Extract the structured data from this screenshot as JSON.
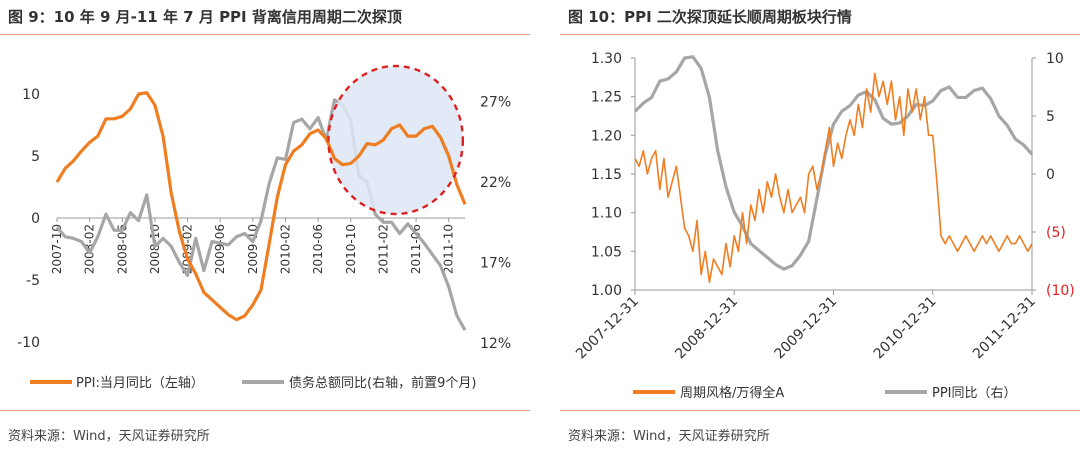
{
  "left": {
    "title": "图 9：10 年 9 月-11 年 7 月 PPI 背离信用周期二次探顶",
    "source": "资料来源：Wind，天风证券研究所",
    "chart_data": {
      "type": "line",
      "left_axis": {
        "ticks": [
          "10",
          "5",
          "0",
          "-5",
          "-10"
        ],
        "range": [
          -10,
          10
        ]
      },
      "right_axis": {
        "ticks": [
          "27%",
          "22%",
          "17%",
          "12%"
        ],
        "range": [
          12,
          27
        ]
      },
      "x_ticks": [
        "2007-10",
        "2008-02",
        "2008-06",
        "2008-10",
        "2009-02",
        "2009-06",
        "2009-10",
        "2010-02",
        "2010-06",
        "2010-10",
        "2011-02",
        "2011-06",
        "2011-10"
      ],
      "series": [
        {
          "name": "PPI:当月同比（左轴）",
          "color": "#ef7d22",
          "axis": "left",
          "t": [
            0,
            1,
            2,
            3,
            4,
            5,
            6,
            7,
            8,
            9,
            10,
            11,
            12,
            13,
            14,
            15,
            16,
            17,
            18,
            19,
            20,
            21,
            22,
            23,
            24,
            25,
            26,
            27,
            28,
            29,
            30,
            31,
            32,
            33,
            34,
            35,
            36,
            37,
            38,
            39,
            40,
            41,
            42,
            43,
            44,
            45,
            46,
            47,
            48,
            49,
            50
          ],
          "values": [
            2.9,
            4.0,
            4.6,
            5.4,
            6.1,
            6.6,
            8.0,
            8.0,
            8.2,
            8.8,
            10.0,
            10.1,
            9.1,
            6.6,
            2.0,
            -1.1,
            -3.3,
            -4.5,
            -6.0,
            -6.6,
            -7.2,
            -7.8,
            -8.2,
            -7.9,
            -7.0,
            -5.8,
            -2.1,
            1.7,
            4.3,
            5.4,
            5.9,
            6.8,
            7.1,
            6.4,
            4.8,
            4.3,
            4.4,
            5.0,
            6.0,
            5.9,
            6.3,
            7.2,
            7.5,
            6.6,
            6.6,
            7.2,
            7.4,
            6.5,
            5.0,
            2.7,
            1.1
          ]
        },
        {
          "name": "债务总额同比(右轴，前置9个月)",
          "color": "#a6a6a6",
          "axis": "right",
          "t": [
            0,
            1,
            2,
            3,
            4,
            5,
            6,
            7,
            8,
            9,
            10,
            11,
            12,
            13,
            14,
            15,
            16,
            17,
            18,
            19,
            20,
            21,
            22,
            23,
            24,
            25,
            26,
            27,
            28,
            29,
            30,
            31,
            32,
            33,
            34,
            35,
            36,
            37,
            38,
            39,
            40,
            41,
            42,
            43,
            44,
            45,
            46,
            47,
            48,
            49,
            50
          ],
          "values": [
            19.2,
            18.6,
            18.5,
            18.3,
            17.6,
            18.6,
            20.0,
            19.0,
            19.0,
            20.1,
            19.6,
            21.2,
            18.0,
            18.5,
            18.0,
            17.0,
            16.2,
            18.5,
            16.5,
            18.3,
            18.2,
            18.1,
            18.6,
            18.8,
            18.3,
            19.6,
            21.9,
            23.5,
            23.4,
            25.7,
            25.9,
            25.3,
            26.0,
            24.6,
            27.1,
            26.8,
            25.8,
            22.4,
            22.0,
            20.0,
            19.5,
            19.5,
            18.8,
            19.4,
            18.8,
            18.2,
            17.5,
            16.8,
            15.5,
            13.7,
            12.8
          ]
        }
      ],
      "highlight": {
        "t_start": 34,
        "t_end": 49
      }
    }
  },
  "right": {
    "title": "图 10：PPI 二次探顶延长顺周期板块行情",
    "source": "资料来源：Wind，天风证券研究所",
    "chart_data": {
      "type": "line",
      "left_axis": {
        "ticks": [
          "1.30",
          "1.25",
          "1.20",
          "1.15",
          "1.10",
          "1.05",
          "1.00"
        ],
        "range": [
          1.0,
          1.3
        ]
      },
      "right_axis": {
        "ticks": [
          "10",
          "5",
          "0",
          "(5)",
          "(10)"
        ],
        "range": [
          -10,
          10
        ]
      },
      "x_ticks": [
        "2007-12-31",
        "2008-12-31",
        "2009-12-31",
        "2010-12-31",
        "2011-12-31"
      ],
      "series": [
        {
          "name": "周期风格/万得全A",
          "color": "#ef7d22",
          "axis": "left",
          "t": [
            0,
            0.5,
            1,
            1.5,
            2,
            2.5,
            3,
            3.5,
            4,
            4.5,
            5,
            5.5,
            6,
            6.5,
            7,
            7.5,
            8,
            8.5,
            9,
            9.5,
            10,
            10.5,
            11,
            11.5,
            12,
            12.5,
            13,
            13.5,
            14,
            14.5,
            15,
            15.5,
            16,
            16.5,
            17,
            17.5,
            18,
            18.5,
            19,
            19.5,
            20,
            20.5,
            21,
            21.5,
            22,
            22.5,
            23,
            23.5,
            24,
            24.5,
            25,
            25.5,
            26,
            26.5,
            27,
            27.5,
            28,
            28.5,
            29,
            29.5,
            30,
            30.5,
            31,
            31.5,
            32,
            32.5,
            33,
            33.5,
            34,
            34.5,
            35,
            35.5,
            36,
            36.5,
            37,
            37.5,
            38,
            38.5,
            39,
            39.5,
            40,
            40.5,
            41,
            41.5,
            42,
            42.5,
            43,
            43.5,
            44,
            44.5,
            45,
            45.5,
            46,
            46.5,
            47,
            47.5,
            48
          ],
          "values": [
            1.17,
            1.16,
            1.18,
            1.15,
            1.17,
            1.18,
            1.13,
            1.17,
            1.12,
            1.14,
            1.16,
            1.12,
            1.08,
            1.07,
            1.05,
            1.09,
            1.02,
            1.05,
            1.01,
            1.04,
            1.03,
            1.02,
            1.06,
            1.03,
            1.07,
            1.05,
            1.1,
            1.06,
            1.11,
            1.09,
            1.13,
            1.1,
            1.14,
            1.12,
            1.15,
            1.12,
            1.1,
            1.13,
            1.1,
            1.11,
            1.12,
            1.1,
            1.15,
            1.16,
            1.13,
            1.15,
            1.18,
            1.21,
            1.16,
            1.19,
            1.17,
            1.2,
            1.22,
            1.2,
            1.24,
            1.21,
            1.26,
            1.23,
            1.28,
            1.25,
            1.27,
            1.24,
            1.27,
            1.22,
            1.25,
            1.2,
            1.26,
            1.23,
            1.26,
            1.22,
            1.25,
            1.2,
            1.2,
            1.14,
            1.07,
            1.06,
            1.07,
            1.06,
            1.05,
            1.06,
            1.07,
            1.06,
            1.05,
            1.06,
            1.07,
            1.06,
            1.07,
            1.06,
            1.05,
            1.06,
            1.07,
            1.06,
            1.06,
            1.07,
            1.06,
            1.05,
            1.06,
            1.07
          ]
        },
        {
          "name": "PPI同比（右）",
          "color": "#a6a6a6",
          "axis": "right",
          "t": [
            0,
            1,
            2,
            3,
            4,
            5,
            6,
            7,
            8,
            9,
            10,
            11,
            12,
            13,
            14,
            15,
            16,
            17,
            18,
            19,
            20,
            21,
            22,
            23,
            24,
            25,
            26,
            27,
            28,
            29,
            30,
            31,
            32,
            33,
            34,
            35,
            36,
            37,
            38,
            39,
            40,
            41,
            42,
            43,
            44,
            45,
            46,
            47,
            48
          ],
          "values": [
            5.4,
            6.1,
            6.6,
            8.0,
            8.2,
            8.8,
            10.0,
            10.1,
            9.1,
            6.6,
            2.0,
            -1.1,
            -3.3,
            -4.5,
            -6.0,
            -6.6,
            -7.2,
            -7.8,
            -8.2,
            -7.9,
            -7.0,
            -5.8,
            -2.1,
            1.7,
            4.3,
            5.4,
            5.9,
            6.8,
            7.1,
            6.4,
            4.8,
            4.3,
            4.4,
            5.0,
            6.0,
            5.9,
            6.3,
            7.2,
            7.5,
            6.6,
            6.6,
            7.2,
            7.4,
            6.5,
            5.0,
            4.2,
            3.0,
            2.5,
            1.7
          ]
        }
      ]
    }
  }
}
